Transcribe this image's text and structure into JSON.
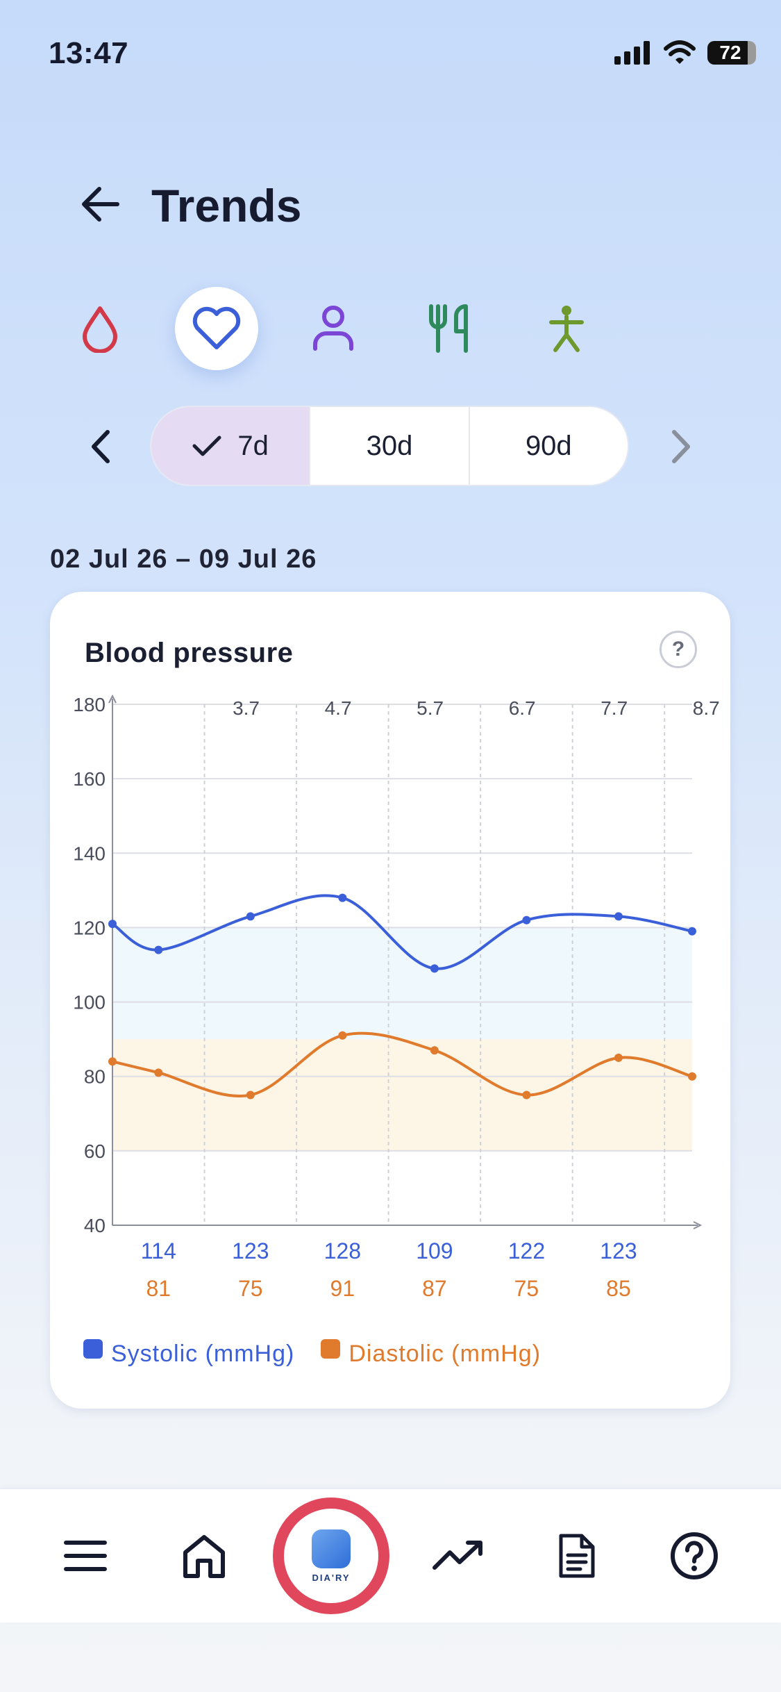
{
  "status": {
    "time": "13:47",
    "battery": "72"
  },
  "header": {
    "title": "Trends"
  },
  "categories": [
    {
      "name": "glucose",
      "icon": "blood-drop-icon",
      "color": "#d23a4a"
    },
    {
      "name": "blood-pressure",
      "icon": "heart-icon",
      "color": "#3a5fd9",
      "active": true
    },
    {
      "name": "weight",
      "icon": "person-icon",
      "color": "#7b45d6"
    },
    {
      "name": "meals",
      "icon": "fork-knife-icon",
      "color": "#2e8a5c"
    },
    {
      "name": "activity",
      "icon": "walking-figure-icon",
      "color": "#6e9a2d"
    }
  ],
  "range": {
    "options": [
      "7d",
      "30d",
      "90d"
    ],
    "selected": "7d"
  },
  "date_range": "02 Jul 26 – 09 Jul 26",
  "card": {
    "title": "Blood pressure",
    "help": "?"
  },
  "chart_data": {
    "type": "line",
    "title": "Blood pressure",
    "ylim": [
      40,
      180
    ],
    "y_ticks": [
      "40",
      "60",
      "80",
      "100",
      "120",
      "140",
      "160",
      "180"
    ],
    "x_ticks": [
      "3.7",
      "4.7",
      "5.7",
      "6.7",
      "7.7",
      "8.7"
    ],
    "reference_bands": [
      {
        "from": 90,
        "to": 120,
        "color": "#eef8fd"
      },
      {
        "from": 60,
        "to": 90,
        "color": "#fdf6e6"
      }
    ],
    "series": [
      {
        "name": "Systolic (mmHg)",
        "color": "#3a5fd9",
        "x": [
          2.7,
          3.2,
          4.2,
          5.2,
          6.2,
          7.2,
          8.2,
          9.0
        ],
        "y": [
          121,
          114,
          123,
          128,
          109,
          122,
          123,
          119
        ],
        "labels": [
          "114",
          "123",
          "128",
          "109",
          "122",
          "123"
        ]
      },
      {
        "name": "Diastolic (mmHg)",
        "color": "#e07a2c",
        "x": [
          2.7,
          3.2,
          4.2,
          5.2,
          6.2,
          7.2,
          8.2,
          9.0
        ],
        "y": [
          84,
          81,
          75,
          91,
          87,
          75,
          85,
          80
        ],
        "labels": [
          "81",
          "75",
          "91",
          "87",
          "75",
          "85"
        ]
      }
    ],
    "grid": true,
    "legend": "bottom-left"
  },
  "nav": [
    {
      "name": "menu",
      "icon": "hamburger-menu-icon"
    },
    {
      "name": "home",
      "icon": "home-icon"
    },
    {
      "name": "diary",
      "icon": "app-logo-icon",
      "label": "DIA'RY"
    },
    {
      "name": "trends",
      "icon": "trending-up-icon"
    },
    {
      "name": "reports",
      "icon": "document-icon"
    },
    {
      "name": "help",
      "icon": "help-circle-icon"
    }
  ]
}
